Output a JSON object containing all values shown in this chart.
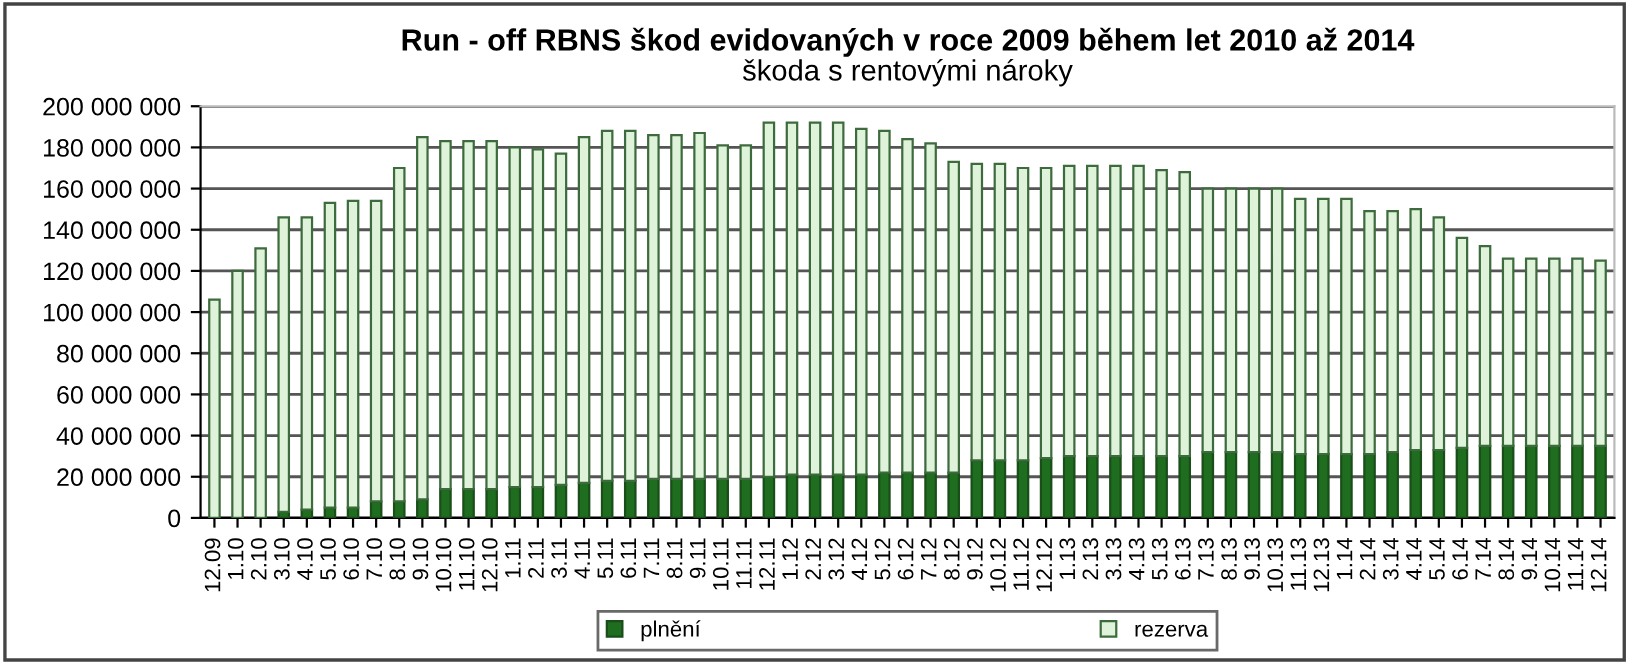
{
  "chart_data": {
    "type": "bar",
    "stacked": true,
    "title": "Run - off RBNS škod evidovaných v roce 2009 během let 2010 až 2014",
    "subtitle": "škoda s rentovými nároky",
    "categories": [
      "12.09",
      "1.10",
      "2.10",
      "3.10",
      "4.10",
      "5.10",
      "6.10",
      "7.10",
      "8.10",
      "9.10",
      "10.10",
      "11.10",
      "12.10",
      "1.11",
      "2.11",
      "3.11",
      "4.11",
      "5.11",
      "6.11",
      "7.11",
      "8.11",
      "9.11",
      "10.11",
      "11.11",
      "12.11",
      "1.12",
      "2.12",
      "3.12",
      "4.12",
      "5.12",
      "6.12",
      "7.12",
      "8.12",
      "9.12",
      "10.12",
      "11.12",
      "12.12",
      "1.13",
      "2.13",
      "3.13",
      "4.13",
      "5.13",
      "6.13",
      "7.13",
      "8.13",
      "9.13",
      "10.13",
      "11.13",
      "12.13",
      "1.14",
      "2.14",
      "3.14",
      "4.14",
      "5.14",
      "6.14",
      "7.14",
      "8.14",
      "9.14",
      "10.14",
      "11.14",
      "12.14"
    ],
    "series": [
      {
        "name": "plnění",
        "color": "#1f6e1f",
        "values": [
          0,
          0,
          0,
          3000000,
          4000000,
          5000000,
          5000000,
          8000000,
          8000000,
          9000000,
          14000000,
          14000000,
          14000000,
          15000000,
          15000000,
          16000000,
          17000000,
          18000000,
          18000000,
          19000000,
          19000000,
          19000000,
          19000000,
          19000000,
          20000000,
          21000000,
          21000000,
          21000000,
          21000000,
          22000000,
          22000000,
          22000000,
          22000000,
          28000000,
          28000000,
          28000000,
          29000000,
          30000000,
          30000000,
          30000000,
          30000000,
          30000000,
          30000000,
          32000000,
          32000000,
          32000000,
          32000000,
          31000000,
          31000000,
          31000000,
          31000000,
          32000000,
          33000000,
          33000000,
          34000000,
          35000000,
          35000000,
          35000000,
          35000000,
          35000000,
          35000000
        ]
      },
      {
        "name": "rezerva",
        "color": "#dff3da",
        "values": [
          106000000,
          120000000,
          131000000,
          143000000,
          142000000,
          148000000,
          149000000,
          146000000,
          162000000,
          176000000,
          169000000,
          169000000,
          169000000,
          165000000,
          164000000,
          161000000,
          168000000,
          170000000,
          170000000,
          167000000,
          167000000,
          168000000,
          162000000,
          162000000,
          172000000,
          171000000,
          171000000,
          171000000,
          168000000,
          166000000,
          162000000,
          160000000,
          151000000,
          144000000,
          144000000,
          142000000,
          141000000,
          141000000,
          141000000,
          141000000,
          141000000,
          139000000,
          138000000,
          128000000,
          128000000,
          128000000,
          128000000,
          124000000,
          124000000,
          124000000,
          118000000,
          117000000,
          117000000,
          113000000,
          102000000,
          97000000,
          91000000,
          91000000,
          91000000,
          91000000,
          90000000
        ]
      }
    ],
    "ylim": [
      0,
      200000000
    ],
    "yticks": [
      {
        "value": 0,
        "label": "0"
      },
      {
        "value": 20000000,
        "label": "20 000 000"
      },
      {
        "value": 40000000,
        "label": "40 000 000"
      },
      {
        "value": 60000000,
        "label": "60 000 000"
      },
      {
        "value": 80000000,
        "label": "80 000 000"
      },
      {
        "value": 100000000,
        "label": "100 000 000"
      },
      {
        "value": 120000000,
        "label": "120 000 000"
      },
      {
        "value": 140000000,
        "label": "140 000 000"
      },
      {
        "value": 160000000,
        "label": "160 000 000"
      },
      {
        "value": 180000000,
        "label": "180 000 000"
      },
      {
        "value": 200000000,
        "label": "200 000 000"
      }
    ],
    "grid": "y",
    "legend": "bottom"
  }
}
